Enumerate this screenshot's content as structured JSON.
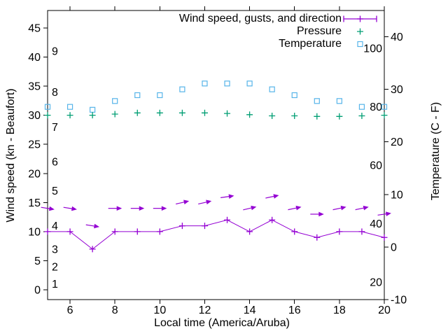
{
  "chart_data": {
    "type": "line",
    "title": "",
    "xlabel": "Local time (America/Aruba)",
    "x_range": [
      5,
      20
    ],
    "x_ticks": [
      6,
      8,
      10,
      12,
      14,
      16,
      18,
      20
    ],
    "x": [
      5,
      6,
      7,
      8,
      9,
      10,
      11,
      12,
      13,
      14,
      15,
      16,
      17,
      18,
      19,
      20
    ],
    "y1": {
      "label": "Wind speed (kn - Beaufort)",
      "range": [
        -1.68,
        48
      ],
      "ticks": [
        0,
        5,
        10,
        15,
        20,
        25,
        30,
        35,
        40,
        45
      ],
      "beaufort_scale": [
        {
          "bft": "1",
          "kn": 1
        },
        {
          "bft": "2",
          "kn": 4
        },
        {
          "bft": "3",
          "kn": 7
        },
        {
          "bft": "4",
          "kn": 11
        },
        {
          "bft": "5",
          "kn": 17
        },
        {
          "bft": "6",
          "kn": 22
        },
        {
          "bft": "7",
          "kn": 28
        },
        {
          "bft": "8",
          "kn": 34
        },
        {
          "bft": "9",
          "kn": 41
        }
      ]
    },
    "y2": {
      "label": "Temperature (C - F)",
      "range_c": [
        -10,
        45
      ],
      "ticks_c": [
        -10,
        0,
        10,
        20,
        30,
        40
      ],
      "inner_ticks_f": [
        20,
        40,
        60,
        80,
        100
      ]
    },
    "series": {
      "wind_speed_kn": [
        10,
        10,
        7,
        10,
        10,
        10,
        11,
        11,
        12,
        10,
        12,
        10,
        9,
        10,
        10,
        9
      ],
      "wind_gust_kn": [
        14,
        14,
        11,
        14,
        14,
        14,
        15,
        15,
        16,
        14,
        16,
        14,
        13,
        14,
        14,
        13
      ],
      "wind_dir_arrow_deg": [
        189,
        189,
        189,
        180,
        180,
        180,
        167,
        167,
        172,
        167,
        168,
        168,
        180,
        168,
        168,
        172
      ],
      "pressure_inHg": [
        30.0,
        30.0,
        30.0,
        30.2,
        30.4,
        30.4,
        30.4,
        30.4,
        30.3,
        30.1,
        29.9,
        29.9,
        29.8,
        29.8,
        29.9,
        30.0
      ],
      "temperature_f": [
        80,
        80,
        79,
        82,
        84,
        84,
        86,
        88,
        88,
        88,
        86,
        84,
        82,
        82,
        80,
        80
      ]
    },
    "legend": [
      {
        "label": "Wind speed, gusts, and direction",
        "color": "#9400D3",
        "marker": "errorbar-line"
      },
      {
        "label": "Pressure",
        "color": "#009E73",
        "marker": "plus"
      },
      {
        "label": "Temperature",
        "color": "#56B4E9",
        "marker": "open-square"
      }
    ],
    "grid": "off",
    "legend_position": "top-right-inside",
    "colors": {
      "axis": "#000000",
      "background": "#FFFFFF"
    }
  }
}
